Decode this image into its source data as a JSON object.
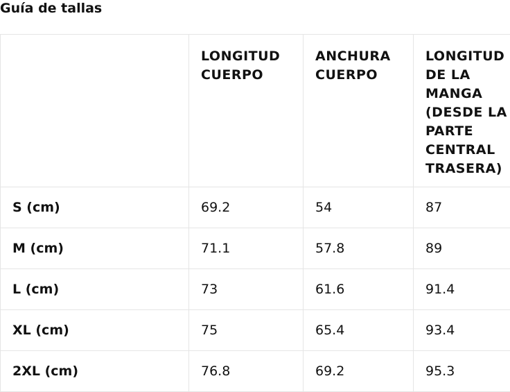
{
  "page": {
    "title": "Guía de tallas"
  },
  "table": {
    "headers": [
      "",
      "LONGITUD CUERPO",
      "ANCHURA CUERPO",
      "LONGITUD DE LA MANGA (DESDE LA PARTE CENTRAL TRASERA)"
    ],
    "rows": [
      {
        "size": "S (cm)",
        "longitud_cuerpo": "69.2",
        "anchura_cuerpo": "54",
        "longitud_manga": "87"
      },
      {
        "size": "M (cm)",
        "longitud_cuerpo": "71.1",
        "anchura_cuerpo": "57.8",
        "longitud_manga": "89"
      },
      {
        "size": "L (cm)",
        "longitud_cuerpo": "73",
        "anchura_cuerpo": "61.6",
        "longitud_manga": "91.4"
      },
      {
        "size": "XL (cm)",
        "longitud_cuerpo": "75",
        "anchura_cuerpo": "65.4",
        "longitud_manga": "93.4"
      },
      {
        "size": "2XL (cm)",
        "longitud_cuerpo": "76.8",
        "anchura_cuerpo": "69.2",
        "longitud_manga": "95.3"
      }
    ]
  }
}
